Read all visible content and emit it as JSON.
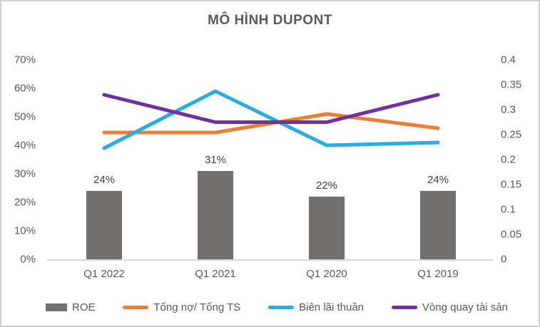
{
  "chart": {
    "title": "MÔ HÌNH DUPONT"
  },
  "chart_data": {
    "type": "combo-bar-line",
    "title": "MÔ HÌNH DUPONT",
    "categories": [
      "Q1 2022",
      "Q1 2021",
      "Q1 2020",
      "Q1 2019"
    ],
    "left_axis": {
      "min": 0,
      "max": 70,
      "unit": "%",
      "ticks": [
        "0%",
        "10%",
        "20%",
        "30%",
        "40%",
        "50%",
        "60%",
        "70%"
      ]
    },
    "right_axis": {
      "min": 0,
      "max": 0.4,
      "ticks": [
        "0",
        "0.05",
        "0.1",
        "0.15",
        "0.2",
        "0.25",
        "0.3",
        "0.35",
        "0.4"
      ]
    },
    "bar_series": {
      "name": "ROE",
      "axis": "left",
      "color": "#747070",
      "values": [
        24,
        31,
        22,
        24
      ],
      "data_labels": [
        "24%",
        "31%",
        "22%",
        "24%"
      ]
    },
    "line_series": [
      {
        "name": "Tổng nợ/ Tổng TS",
        "axis": "left",
        "color": "#ED7D31",
        "values": [
          44.5,
          44.5,
          51,
          46
        ]
      },
      {
        "name": "Biên lãi thuần",
        "axis": "left",
        "color": "#29ACE3",
        "values": [
          39,
          59,
          40,
          41
        ]
      },
      {
        "name": "Vòng quay tài sản",
        "axis": "right",
        "color": "#7030A0",
        "values": [
          0.33,
          0.275,
          0.275,
          0.33
        ]
      }
    ],
    "legend_position": "bottom",
    "grid": false,
    "axis_line_color": "#D9D9D9"
  }
}
